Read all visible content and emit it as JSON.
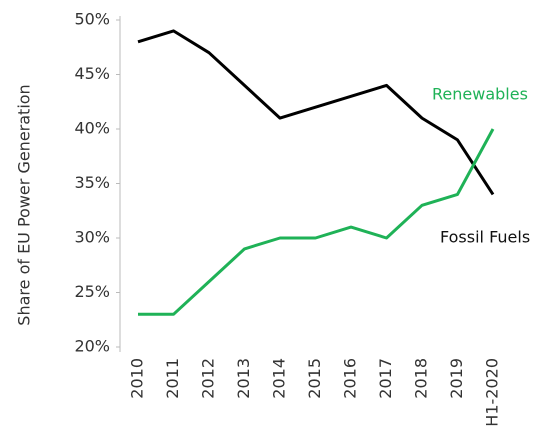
{
  "chart_data": {
    "type": "line",
    "y_label": "Share of EU Power Generation",
    "categories": [
      "2010",
      "2011",
      "2012",
      "2013",
      "2014",
      "2015",
      "2016",
      "2017",
      "2018",
      "2019",
      "H1-2020"
    ],
    "series": [
      {
        "name": "Fossil Fuels",
        "color": "#000000",
        "values": [
          48,
          49,
          47,
          44,
          41,
          42,
          43,
          44,
          41,
          39,
          34
        ]
      },
      {
        "name": "Renewables",
        "color": "#1fb257",
        "values": [
          23,
          23,
          26,
          29,
          30,
          30,
          31,
          30,
          33,
          34,
          40
        ]
      }
    ],
    "ylim": [
      20,
      50
    ],
    "yticks": [
      {
        "value": 20,
        "label": "20%"
      },
      {
        "value": 25,
        "label": "25%"
      },
      {
        "value": 30,
        "label": "30%"
      },
      {
        "value": 35,
        "label": "35%"
      },
      {
        "value": 40,
        "label": "40%"
      },
      {
        "value": 45,
        "label": "45%"
      },
      {
        "value": 50,
        "label": "50%"
      }
    ],
    "grid": false
  }
}
